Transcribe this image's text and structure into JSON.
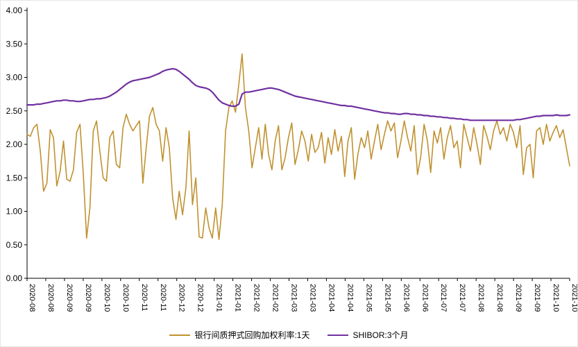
{
  "chart_data": {
    "type": "line",
    "title": "",
    "xlabel": "",
    "ylabel": "",
    "ylim": [
      0.0,
      4.0
    ],
    "grid": false,
    "legend_position": "bottom-center",
    "axis_color": "#000000",
    "y_ticks": [
      "0.00",
      "0.50",
      "1.00",
      "1.50",
      "2.00",
      "2.50",
      "3.00",
      "3.50",
      "4.00"
    ],
    "x_ticks": [
      "2020-08",
      "2020-08",
      "2020-09",
      "2020-09",
      "2020-10",
      "2020-10",
      "2020-11",
      "2020-11",
      "2020-12",
      "2020-12",
      "2021-01",
      "2021-01",
      "2021-02",
      "2021-02",
      "2021-03",
      "2021-03",
      "2021-04",
      "2021-04",
      "2021-05",
      "2021-05",
      "2021-06",
      "2021-06",
      "2021-07",
      "2021-07",
      "2021-08",
      "2021-08",
      "2021-09",
      "2021-09",
      "2021-10",
      "2021-10"
    ],
    "series": [
      {
        "name": "银行间质押式回购加权利率:1天",
        "color": "#C0912F",
        "width": 1.6,
        "values": [
          2.15,
          2.12,
          2.25,
          2.3,
          1.9,
          1.3,
          1.42,
          2.22,
          2.1,
          1.38,
          1.6,
          2.05,
          1.48,
          1.45,
          1.62,
          2.18,
          2.3,
          1.55,
          0.6,
          1.05,
          2.2,
          2.35,
          1.9,
          1.5,
          1.45,
          2.1,
          2.2,
          1.7,
          1.65,
          2.25,
          2.45,
          2.3,
          2.2,
          2.28,
          2.35,
          1.42,
          1.95,
          2.42,
          2.55,
          2.3,
          2.2,
          1.75,
          2.25,
          1.95,
          1.2,
          0.88,
          1.3,
          0.95,
          1.35,
          2.2,
          1.1,
          1.5,
          0.62,
          0.6,
          1.05,
          0.75,
          0.6,
          1.05,
          0.58,
          1.1,
          2.2,
          2.55,
          2.65,
          2.48,
          2.9,
          3.35,
          2.55,
          2.2,
          1.65,
          1.95,
          2.25,
          1.78,
          2.3,
          1.85,
          1.62,
          2.05,
          2.28,
          1.62,
          1.8,
          2.1,
          2.32,
          1.7,
          1.92,
          2.2,
          2.05,
          1.75,
          2.15,
          1.88,
          1.95,
          2.18,
          1.72,
          2.1,
          1.85,
          2.22,
          1.9,
          2.12,
          1.52,
          2.05,
          2.25,
          1.48,
          1.85,
          2.1,
          1.95,
          2.2,
          1.78,
          2.05,
          2.3,
          1.92,
          2.15,
          2.35,
          2.2,
          2.32,
          1.8,
          2.05,
          2.35,
          2.1,
          1.9,
          2.28,
          1.55,
          1.82,
          2.3,
          2.05,
          1.58,
          2.2,
          2.02,
          2.25,
          1.78,
          2.1,
          2.28,
          1.95,
          2.05,
          1.65,
          2.3,
          2.1,
          1.9,
          2.25,
          2.0,
          1.7,
          2.28,
          2.12,
          1.92,
          2.2,
          2.35,
          2.15,
          2.25,
          2.05,
          2.3,
          2.18,
          1.95,
          2.28,
          1.55,
          1.95,
          2.0,
          1.5,
          2.2,
          2.25,
          2.0,
          2.3,
          2.05,
          2.18,
          2.28,
          2.1,
          2.22,
          1.95,
          1.68
        ]
      },
      {
        "name": "SHIBOR:3个月",
        "color": "#7030A0",
        "width": 2.2,
        "values": [
          2.59,
          2.59,
          2.59,
          2.6,
          2.6,
          2.61,
          2.62,
          2.63,
          2.64,
          2.65,
          2.65,
          2.66,
          2.66,
          2.65,
          2.65,
          2.64,
          2.64,
          2.65,
          2.66,
          2.67,
          2.67,
          2.68,
          2.68,
          2.69,
          2.7,
          2.72,
          2.75,
          2.78,
          2.82,
          2.86,
          2.9,
          2.93,
          2.95,
          2.96,
          2.97,
          2.98,
          2.99,
          3.0,
          3.02,
          3.04,
          3.06,
          3.09,
          3.11,
          3.12,
          3.13,
          3.12,
          3.09,
          3.05,
          3.01,
          2.97,
          2.92,
          2.88,
          2.86,
          2.85,
          2.84,
          2.82,
          2.78,
          2.72,
          2.66,
          2.62,
          2.6,
          2.58,
          2.57,
          2.57,
          2.6,
          2.75,
          2.78,
          2.78,
          2.79,
          2.8,
          2.81,
          2.82,
          2.83,
          2.84,
          2.84,
          2.83,
          2.82,
          2.8,
          2.78,
          2.76,
          2.74,
          2.72,
          2.71,
          2.7,
          2.69,
          2.68,
          2.67,
          2.66,
          2.65,
          2.64,
          2.63,
          2.62,
          2.61,
          2.6,
          2.59,
          2.58,
          2.58,
          2.57,
          2.57,
          2.56,
          2.55,
          2.54,
          2.53,
          2.52,
          2.51,
          2.5,
          2.49,
          2.48,
          2.47,
          2.47,
          2.46,
          2.46,
          2.45,
          2.45,
          2.46,
          2.46,
          2.45,
          2.45,
          2.44,
          2.44,
          2.43,
          2.43,
          2.42,
          2.42,
          2.41,
          2.41,
          2.4,
          2.4,
          2.39,
          2.39,
          2.38,
          2.38,
          2.37,
          2.37,
          2.36,
          2.36,
          2.36,
          2.36,
          2.36,
          2.36,
          2.36,
          2.36,
          2.36,
          2.36,
          2.36,
          2.36,
          2.36,
          2.36,
          2.37,
          2.37,
          2.38,
          2.39,
          2.4,
          2.41,
          2.42,
          2.42,
          2.43,
          2.43,
          2.43,
          2.43,
          2.44,
          2.43,
          2.43,
          2.43,
          2.44
        ]
      }
    ]
  }
}
